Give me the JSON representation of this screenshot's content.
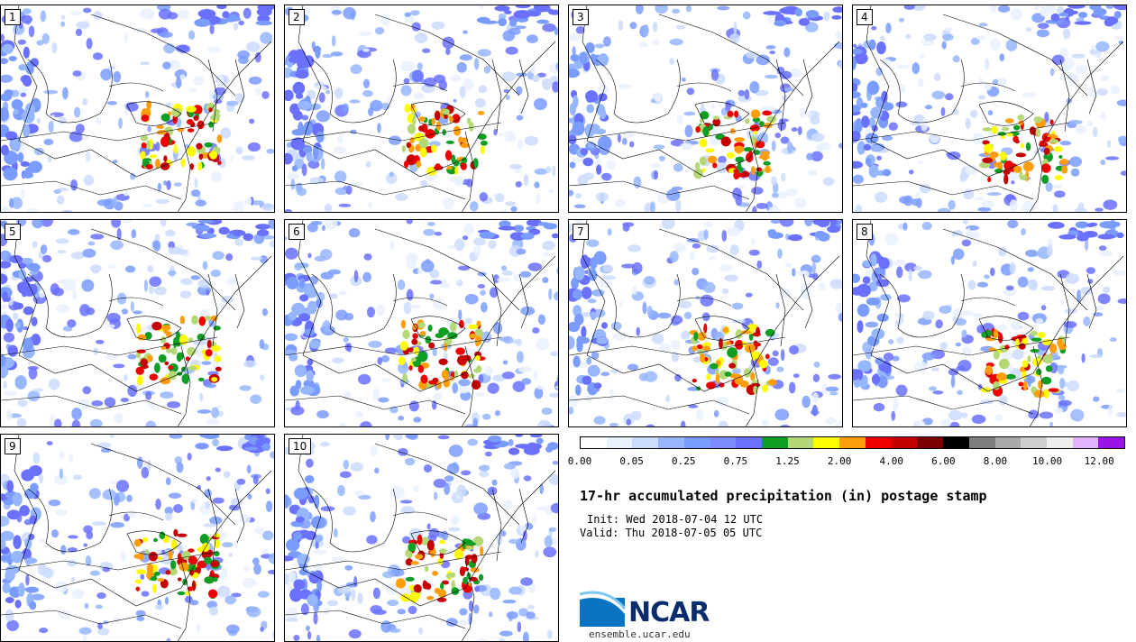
{
  "panels": [
    {
      "label": "1"
    },
    {
      "label": "2"
    },
    {
      "label": "3"
    },
    {
      "label": "4"
    },
    {
      "label": "5"
    },
    {
      "label": "6"
    },
    {
      "label": "7"
    },
    {
      "label": "8"
    },
    {
      "label": "9"
    },
    {
      "label": "10"
    }
  ],
  "legend": {
    "colors": [
      "#ffffff",
      "#e9f1ff",
      "#cbdcff",
      "#96b6ff",
      "#7b9cff",
      "#7d8bff",
      "#6a71ff",
      "#0e9e24",
      "#b4d875",
      "#fffb00",
      "#ff9e09",
      "#ec0000",
      "#c40000",
      "#7c0002",
      "#000000",
      "#7d7d7d",
      "#a9a9a9",
      "#cfcfcf",
      "#eeeeee",
      "#e0b4ff",
      "#9b14e6"
    ],
    "ticks": [
      "0.00",
      "0.05",
      "0.25",
      "0.75",
      "1.25",
      "2.00",
      "4.00",
      "6.00",
      "8.00",
      "10.00",
      "12.00"
    ]
  },
  "title": "17-hr accumulated precipitation (in) postage stamp",
  "init": "Init: Wed 2018-07-04 12 UTC",
  "valid": "Valid: Thu 2018-07-05 05 UTC",
  "logo": "NCAR",
  "website": "ensemble.ucar.edu"
}
